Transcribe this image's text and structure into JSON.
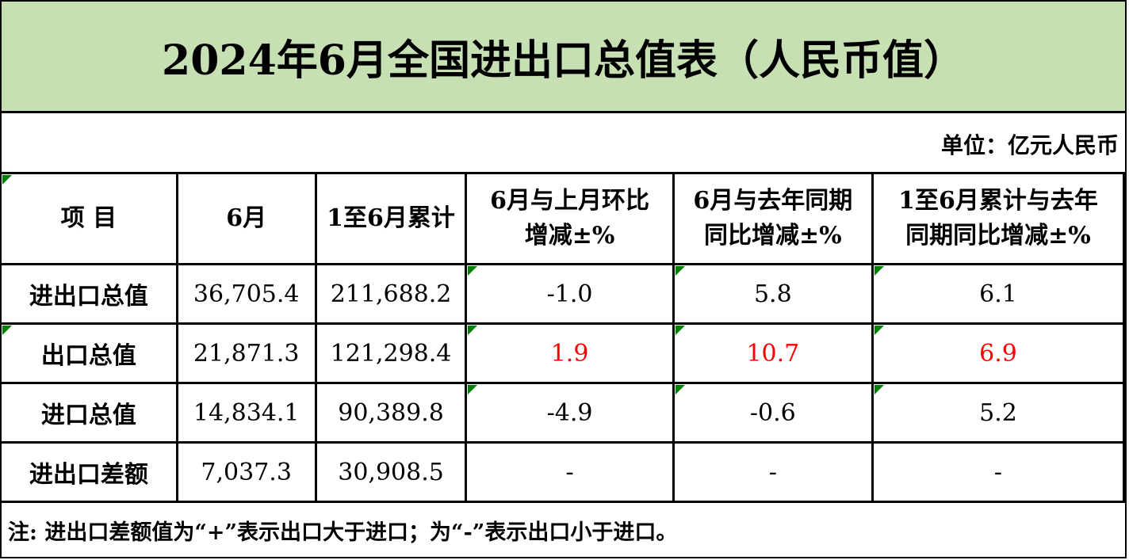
{
  "title": "2024年6月全国进出口总值表（人民币值）",
  "unit": "单位：亿元人民币",
  "headers": [
    "项 目",
    "6月",
    "1至6月累计",
    "6月与上月环比增减±%",
    "6月与去年同期同比增减±%",
    "1至6月累计与去年同期同比增减±%"
  ],
  "header_lines": [
    [
      "项  目"
    ],
    [
      "6月"
    ],
    [
      "1至6月累计"
    ],
    [
      "6月与上月环比",
      "增减±%"
    ],
    [
      "6月与去年同期",
      "同比增减±%"
    ],
    [
      "1至6月累计与去年",
      "同期同比增减±%"
    ]
  ],
  "rows": [
    {
      "label": "进出口总值",
      "june": "36,705.4",
      "ytd": "211,688.2",
      "mom": "-1.0",
      "yoy": "5.8",
      "ytd_yoy": "6.1"
    },
    {
      "label": "出口总值",
      "june": "21,871.3",
      "ytd": "121,298.4",
      "mom": "1.9",
      "yoy": "10.7",
      "ytd_yoy": "6.9"
    },
    {
      "label": "进口总值",
      "june": "14,834.1",
      "ytd": "90,389.8",
      "mom": "-4.9",
      "yoy": "-0.6",
      "ytd_yoy": "5.2"
    },
    {
      "label": "进出口差额",
      "june": "7,037.3",
      "ytd": "30,908.5",
      "mom": "-",
      "yoy": "-",
      "ytd_yoy": "-"
    }
  ],
  "note": "注: 进出口差额值为“+”表示出口大于进口；为“-”表示出口小于进口。",
  "colors": {
    "title_bg": "#c6e0b4",
    "highlight": "#ff0000",
    "indicator": "#008000"
  }
}
